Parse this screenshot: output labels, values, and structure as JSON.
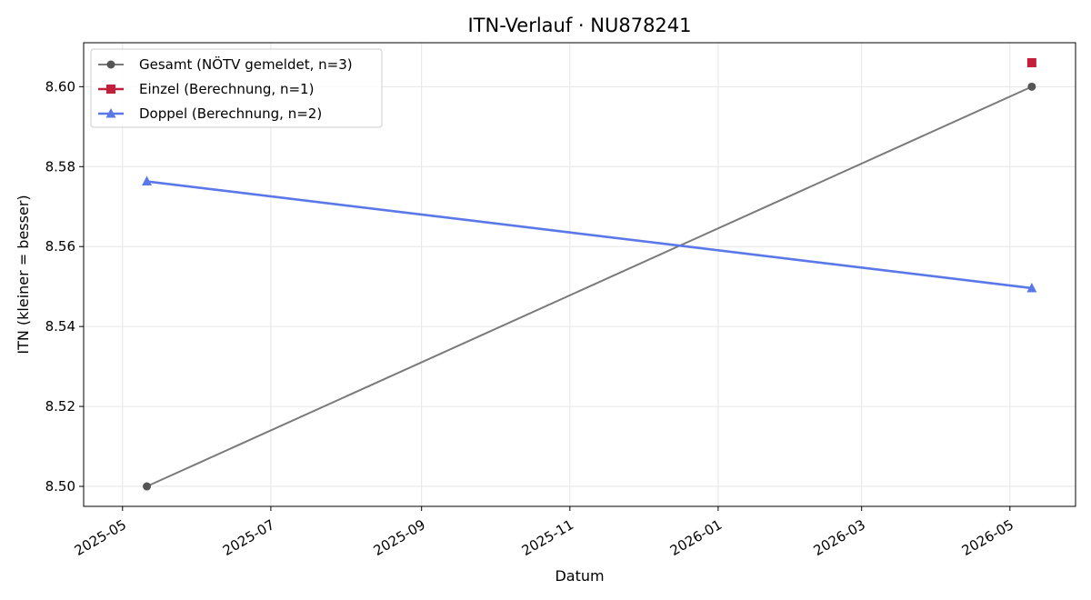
{
  "chart_data": {
    "type": "line",
    "title": "ITN-Verlauf · NU878241",
    "xlabel": "Datum",
    "ylabel": "ITN  (kleiner = besser)",
    "x_axis_type": "date",
    "xlim": [
      "2025-04-15",
      "2026-05-28"
    ],
    "ylim": [
      8.495,
      8.611
    ],
    "x_ticks": [
      "2025-05-01",
      "2025-07-01",
      "2025-09-01",
      "2025-11-01",
      "2026-01-01",
      "2026-03-01",
      "2026-05-01"
    ],
    "x_tick_labels": [
      "2025-05",
      "2025-07",
      "2025-09",
      "2025-11",
      "2026-01",
      "2026-03",
      "2026-05"
    ],
    "y_ticks": [
      8.5,
      8.52,
      8.54,
      8.56,
      8.58,
      8.6
    ],
    "y_tick_labels": [
      "8.50",
      "8.52",
      "8.54",
      "8.56",
      "8.58",
      "8.60"
    ],
    "grid": true,
    "legend_position": "top-left",
    "series": [
      {
        "name": "Gesamt (NÖTV gemeldet, n=3)",
        "color": "#7a7a7a",
        "marker_color": "#555555",
        "marker": "circle",
        "points": [
          {
            "x": "2025-05-11",
            "y": 8.5
          },
          {
            "x": "2026-05-10",
            "y": 8.6
          }
        ]
      },
      {
        "name": "Einzel (Berechnung, n=1)",
        "color": "#c41e3a",
        "marker_color": "#c41e3a",
        "marker": "square",
        "points": [
          {
            "x": "2026-05-10",
            "y": 8.606
          }
        ]
      },
      {
        "name": "Doppel (Berechnung, n=2)",
        "color": "#5a78e8",
        "marker_color": "#5a78e8",
        "marker": "triangle",
        "points": [
          {
            "x": "2025-05-11",
            "y": 8.5763
          },
          {
            "x": "2026-05-10",
            "y": 8.5496
          }
        ]
      }
    ]
  }
}
